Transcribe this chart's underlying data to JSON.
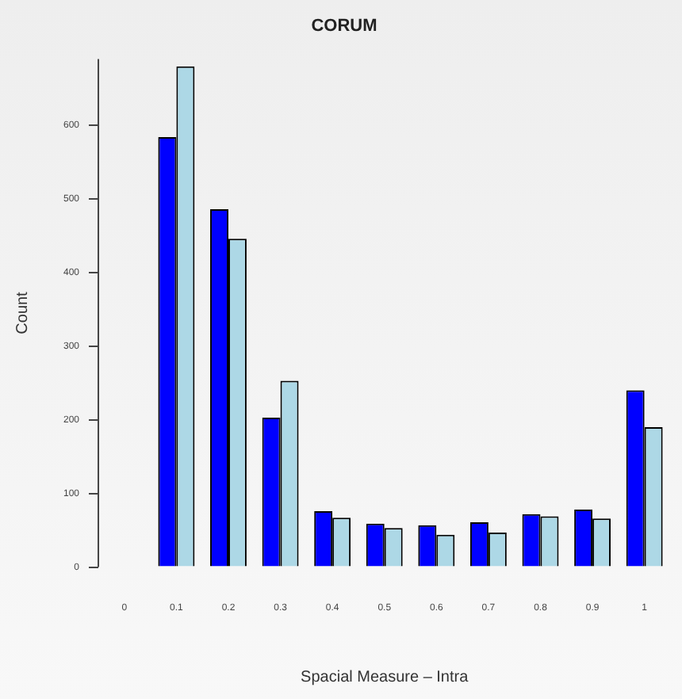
{
  "chart_data": {
    "type": "bar",
    "title": "CORUM",
    "xlabel": "Spacial Measure – Intra",
    "ylabel": "Count",
    "categories": [
      "0",
      "0.1",
      "0.2",
      "0.3",
      "0.4",
      "0.5",
      "0.6",
      "0.7",
      "0.8",
      "0.9",
      "1"
    ],
    "series": [
      {
        "color": "#0000ff",
        "values": [
          0,
          584,
          486,
          203,
          76,
          59,
          57,
          61,
          72,
          78,
          240
        ]
      },
      {
        "color": "#add8e6",
        "values": [
          0,
          680,
          446,
          253,
          67,
          53,
          44,
          47,
          69,
          66,
          190
        ]
      }
    ],
    "ylim": [
      0,
      690
    ],
    "yticks": [
      0,
      100,
      200,
      300,
      400,
      500,
      600
    ],
    "grid": false,
    "legend": false
  }
}
